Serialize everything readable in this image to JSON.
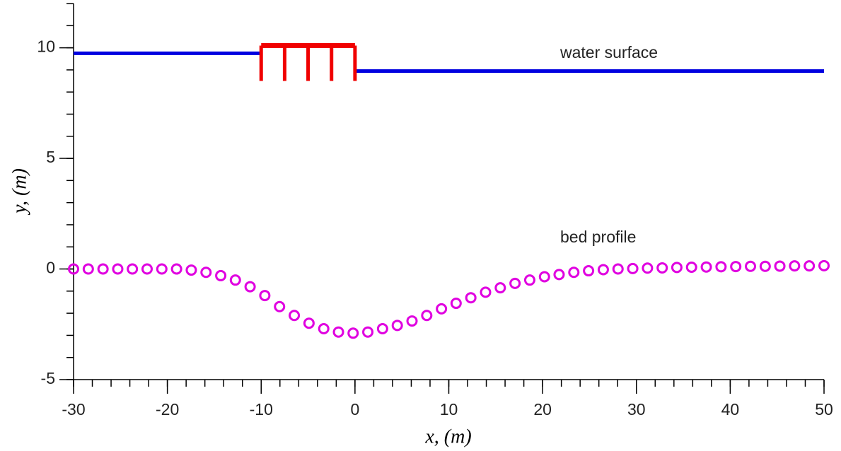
{
  "chart_data": {
    "type": "line",
    "xlabel": "x, (m)",
    "ylabel": "y, (m)",
    "xlim": [
      -30,
      50
    ],
    "ylim": [
      -5,
      12
    ],
    "xticks": [
      -30,
      -20,
      -10,
      0,
      10,
      20,
      30,
      40,
      50
    ],
    "yticks": [
      -5,
      0,
      5,
      10
    ],
    "xminorticks": [
      -30,
      -28,
      -26,
      -24,
      -22,
      -20,
      -18,
      -16,
      -14,
      -12,
      -10,
      -8,
      -6,
      -4,
      -2,
      0,
      2,
      4,
      6,
      8,
      10,
      12,
      14,
      16,
      18,
      20,
      22,
      24,
      26,
      28,
      30,
      32,
      34,
      36,
      38,
      40,
      42,
      44,
      46,
      48,
      50
    ],
    "yminorticks": [
      -5,
      -4,
      -3,
      -2,
      -1,
      0,
      1,
      2,
      3,
      4,
      5,
      6,
      7,
      8,
      9,
      10,
      11,
      12
    ],
    "grid": false,
    "annotations": [
      "water surface",
      "bed profile"
    ],
    "series": [
      {
        "color": "#0000e0",
        "style": "line",
        "x": [
          -30,
          -10
        ],
        "values": [
          9.75,
          9.75
        ]
      },
      {
        "color": "#0000e0",
        "style": "line",
        "x": [
          0,
          50
        ],
        "values": [
          8.95,
          8.95
        ]
      },
      {
        "color": "#e000e0",
        "style": "markers",
        "x": [
          -30,
          -28.43,
          -26.86,
          -25.29,
          -23.73,
          -22.16,
          -20.59,
          -19.02,
          -17.45,
          -15.88,
          -14.31,
          -12.75,
          -11.18,
          -9.61,
          -8.04,
          -6.47,
          -4.9,
          -3.33,
          -1.76,
          -0.2,
          1.37,
          2.94,
          4.51,
          6.08,
          7.65,
          9.22,
          10.78,
          12.35,
          13.92,
          15.49,
          17.06,
          18.63,
          20.2,
          21.76,
          23.33,
          24.9,
          26.47,
          28.04,
          29.61,
          31.18,
          32.75,
          34.31,
          35.88,
          37.45,
          39.02,
          40.59,
          42.16,
          43.73,
          45.29,
          46.86,
          48.43,
          50
        ],
        "values": [
          0,
          0,
          0,
          0,
          0,
          0,
          0,
          0,
          -0.05,
          -0.15,
          -0.3,
          -0.5,
          -0.8,
          -1.2,
          -1.7,
          -2.1,
          -2.45,
          -2.7,
          -2.85,
          -2.9,
          -2.85,
          -2.7,
          -2.55,
          -2.35,
          -2.1,
          -1.8,
          -1.55,
          -1.3,
          -1.05,
          -0.85,
          -0.65,
          -0.5,
          -0.35,
          -0.25,
          -0.15,
          -0.08,
          -0.03,
          0,
          0.02,
          0.04,
          0.05,
          0.07,
          0.08,
          0.09,
          0.1,
          0.11,
          0.12,
          0.12,
          0.13,
          0.14,
          0.14,
          0.15
        ]
      }
    ],
    "structure": {
      "color": "#f00000",
      "x": [
        -10,
        -7.5,
        -5,
        -2.5,
        0
      ],
      "top": 10.1,
      "bottom": 8.5
    }
  }
}
